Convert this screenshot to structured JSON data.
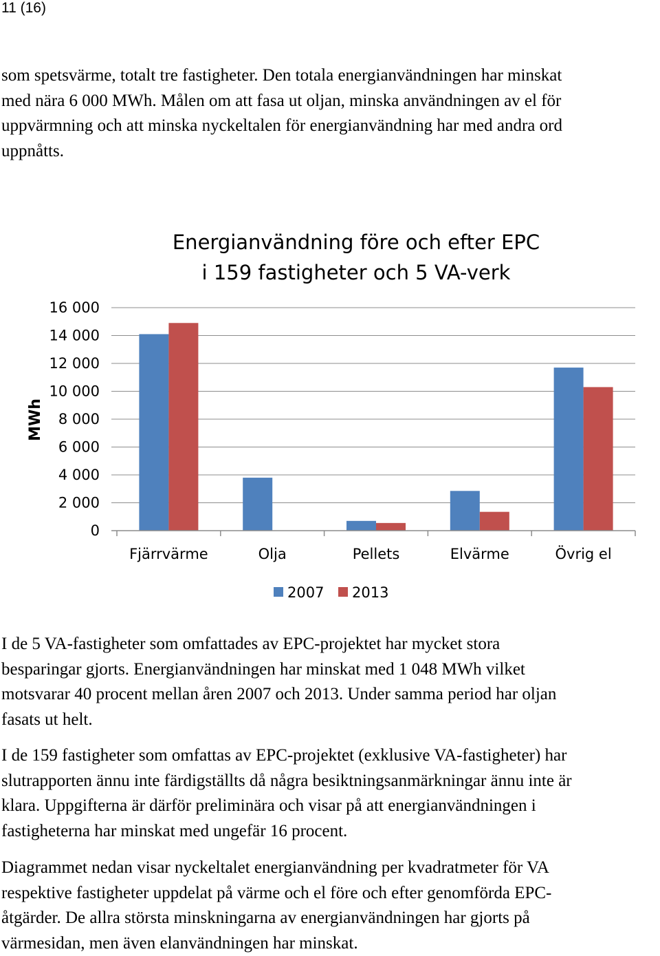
{
  "page_number": "11 (16)",
  "paragraph1": [
    "som spetsvärme, totalt tre fastigheter. Den totala energianvändningen har minskat",
    "med nära 6 000 MWh. Målen om att fasa ut oljan, minska användningen av el för",
    "uppvärmning och att minska nyckeltalen för energianvändning har med andra ord",
    "uppnåtts."
  ],
  "paragraph2": [
    "I de 5 VA-fastigheter som omfattades av EPC-projektet har mycket stora",
    "besparingar gjorts. Energianvändningen har minskat med 1 048 MWh vilket",
    "motsvarar 40 procent mellan åren 2007 och 2013. Under samma period har oljan",
    "fasats ut helt."
  ],
  "paragraph3": [
    "I de 159 fastigheter som omfattas av EPC-projektet (exklusive VA-fastigheter) har",
    "slutrapporten ännu inte färdigställts då några besiktningsanmärkningar ännu inte är",
    "klara. Uppgifterna är därför preliminära och visar på att energianvändningen i",
    "fastigheterna har minskat med ungefär 16 procent."
  ],
  "paragraph4": [
    "Diagrammet nedan visar nyckeltalet energianvändning per kvadratmeter för VA",
    "respektive fastigheter uppdelat på värme och el före och efter genomförda EPC-",
    "åtgärder. De allra största minskningarna av energianvändningen har gjorts på",
    "värmesidan, men även elanvändningen har minskat."
  ],
  "chart_data": {
    "type": "bar",
    "title_lines": [
      "Energianvändning före och efter EPC",
      "i 159 fastigheter och 5 VA-verk"
    ],
    "ylabel": "MWh",
    "xlabel": "",
    "ylim": [
      0,
      16000
    ],
    "yticks": [
      0,
      2000,
      4000,
      6000,
      8000,
      10000,
      12000,
      14000,
      16000
    ],
    "ytick_labels": [
      "0",
      "2 000",
      "4 000",
      "6 000",
      "8 000",
      "10 000",
      "12 000",
      "14 000",
      "16 000"
    ],
    "categories": [
      "Fjärrvärme",
      "Olja",
      "Pellets",
      "Elvärme",
      "Övrig el"
    ],
    "series": [
      {
        "name": "2007",
        "color": "#4f81bd",
        "values": [
          14100,
          3800,
          700,
          2850,
          11700
        ]
      },
      {
        "name": "2013",
        "color": "#c0504d",
        "values": [
          14900,
          0,
          550,
          1350,
          10300
        ]
      }
    ],
    "grid": true,
    "legend_position": "bottom"
  }
}
